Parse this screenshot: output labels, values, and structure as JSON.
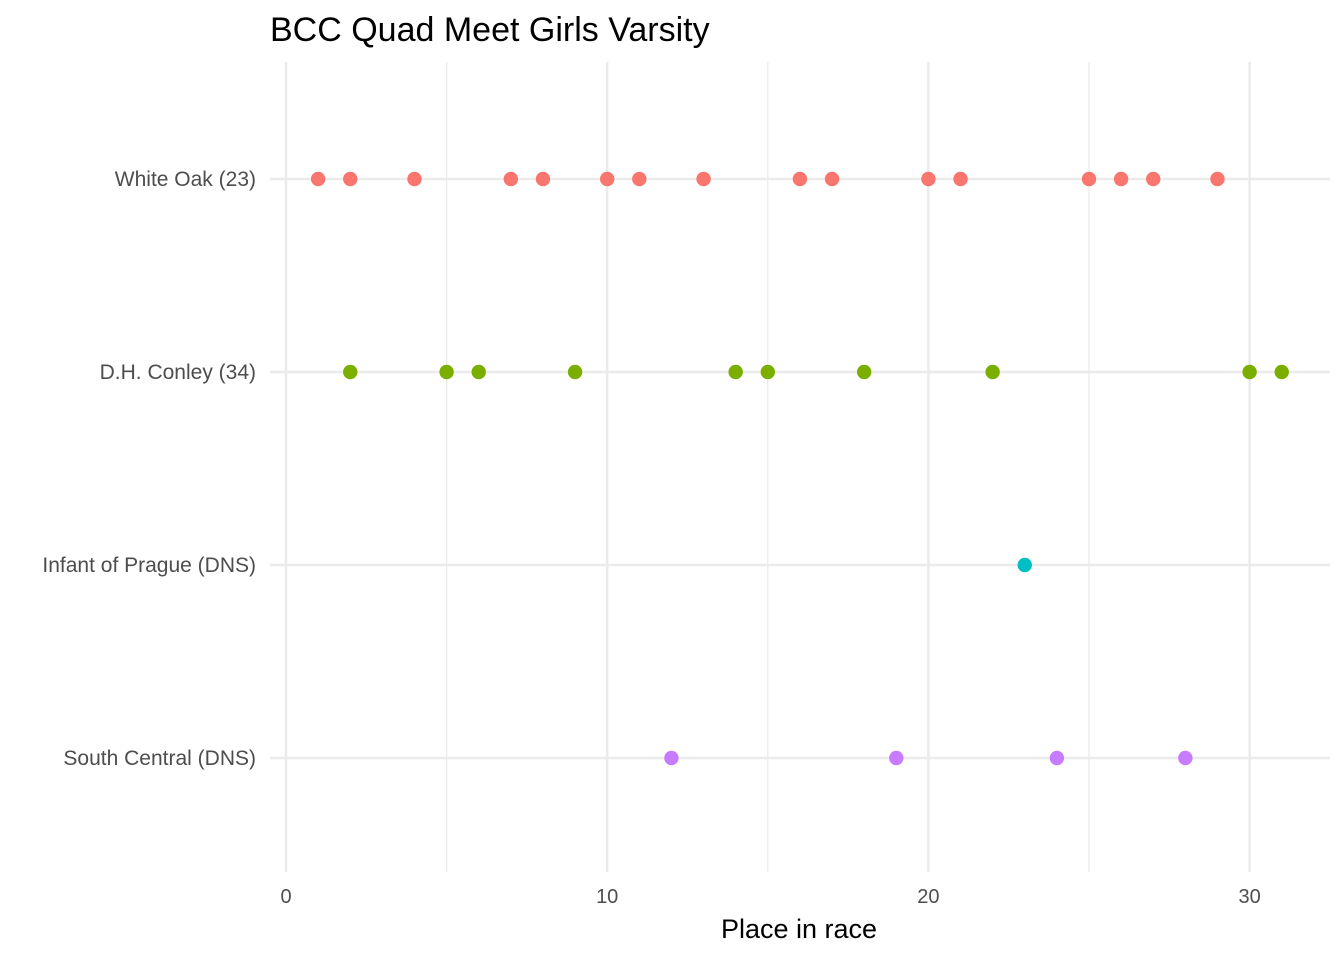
{
  "chart_data": {
    "type": "scatter",
    "title": "BCC Quad Meet Girls Varsity",
    "xlabel": "Place in race",
    "ylabel": "",
    "xlim": [
      0,
      32
    ],
    "x_ticks": [
      0,
      10,
      20,
      30
    ],
    "grid": true,
    "legend": "none",
    "categories": [
      "White Oak (23)",
      "D.H. Conley (34)",
      "Infant of Prague (DNS)",
      "South Central (DNS)"
    ],
    "series": [
      {
        "category": "White Oak (23)",
        "color": "#f8766d",
        "x": [
          1,
          2,
          4,
          7,
          8,
          10,
          11,
          13,
          16,
          17,
          20,
          21,
          25,
          26,
          27,
          29
        ]
      },
      {
        "category": "D.H. Conley (34)",
        "color": "#7cae00",
        "x": [
          2,
          5,
          6,
          9,
          14,
          15,
          18,
          22,
          30,
          31
        ]
      },
      {
        "category": "Infant of Prague (DNS)",
        "color": "#00bfc4",
        "x": [
          23
        ]
      },
      {
        "category": "South Central (DNS)",
        "color": "#c77cff",
        "x": [
          12,
          19,
          24,
          28
        ]
      }
    ]
  }
}
